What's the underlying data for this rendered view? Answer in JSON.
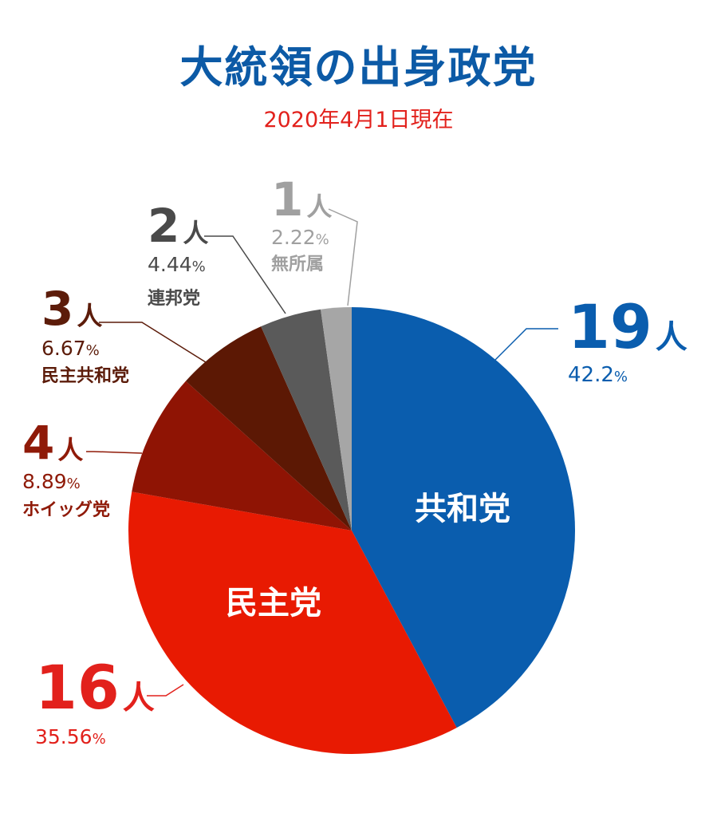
{
  "chart_data": {
    "type": "pie",
    "title": "大統領の出身政党",
    "subtitle": "2020年4月1日現在",
    "slices": [
      {
        "name": "共和党",
        "count": "19",
        "unit": "人",
        "percent": "42.2",
        "value": 42.2,
        "color": "#0a5dae",
        "label_color": "#0a5dae",
        "inner_label": "共和党",
        "outer_name": ""
      },
      {
        "name": "民主党",
        "count": "16",
        "unit": "人",
        "percent": "35.56",
        "value": 35.56,
        "color": "#e81a02",
        "label_color": "#e2211c",
        "inner_label": "民主党",
        "outer_name": ""
      },
      {
        "name": "ホイッグ党",
        "count": "4",
        "unit": "人",
        "percent": "8.89",
        "value": 8.89,
        "color": "#8f1404",
        "label_color": "#8f1a08",
        "inner_label": "",
        "outer_name": "ホイッグ党"
      },
      {
        "name": "民主共和党",
        "count": "3",
        "unit": "人",
        "percent": "6.67",
        "value": 6.67,
        "color": "#5c1804",
        "label_color": "#5c1c0a",
        "inner_label": "",
        "outer_name": "民主共和党"
      },
      {
        "name": "連邦党",
        "count": "2",
        "unit": "人",
        "percent": "4.44",
        "value": 4.44,
        "color": "#5a5a5a",
        "label_color": "#4a4a4a",
        "inner_label": "",
        "outer_name": "連邦党"
      },
      {
        "name": "無所属",
        "count": "1",
        "unit": "人",
        "percent": "2.22",
        "value": 2.22,
        "color": "#a6a6a6",
        "label_color": "#a0a0a0",
        "inner_label": "",
        "outer_name": "無所属"
      }
    ],
    "percent_suffix": "%"
  }
}
